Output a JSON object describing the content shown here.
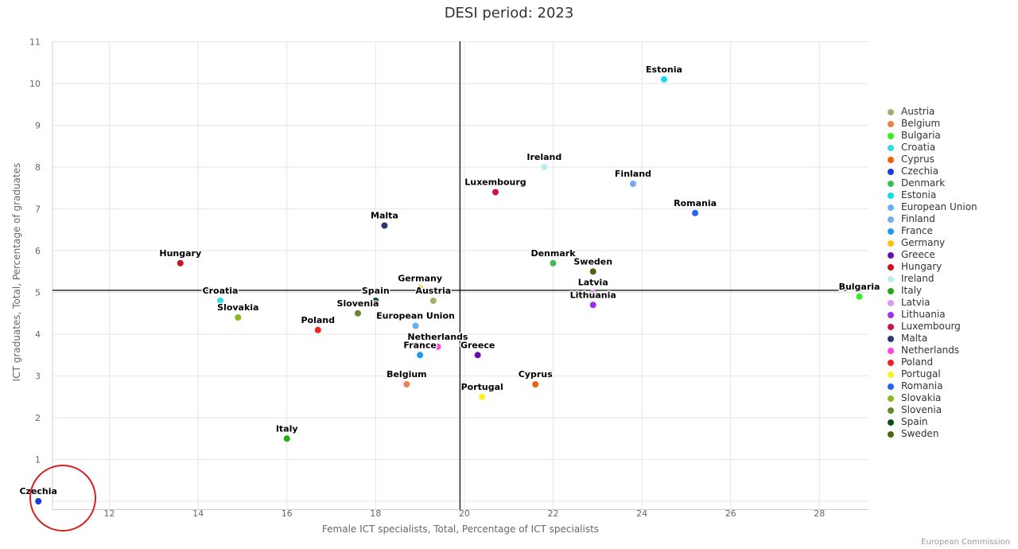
{
  "chart_data": {
    "type": "scatter",
    "title": "DESI period: 2023",
    "xlabel": "Female ICT specialists, Total, Percentage of ICT specialists",
    "ylabel": "ICT graduates, Total, Percentage of graduates",
    "xlim": [
      10.2,
      29.2
    ],
    "ylim": [
      -0.2,
      11
    ],
    "xticks": [
      12,
      14,
      16,
      18,
      20,
      22,
      24,
      26,
      28
    ],
    "yticks": [
      0,
      1,
      2,
      3,
      4,
      5,
      6,
      7,
      8,
      9,
      10,
      11
    ],
    "grid": true,
    "reference_lines": {
      "x": 19.9,
      "y": 5.05
    },
    "legend_position": "right",
    "highlight": "Czechia",
    "points": [
      {
        "name": "Austria",
        "x": 19.3,
        "y": 4.8,
        "color": "#a6ad6b"
      },
      {
        "name": "Belgium",
        "x": 18.7,
        "y": 2.8,
        "color": "#f0804f"
      },
      {
        "name": "Bulgaria",
        "x": 28.9,
        "y": 4.9,
        "color": "#33ee22"
      },
      {
        "name": "Croatia",
        "x": 14.5,
        "y": 4.8,
        "color": "#33dddd"
      },
      {
        "name": "Cyprus",
        "x": 21.6,
        "y": 2.8,
        "color": "#f25f0c"
      },
      {
        "name": "Czechia",
        "x": 10.4,
        "y": 0.0,
        "color": "#1a3cdd"
      },
      {
        "name": "Denmark",
        "x": 22.0,
        "y": 5.7,
        "color": "#44bb55"
      },
      {
        "name": "Estonia",
        "x": 24.5,
        "y": 10.1,
        "color": "#11ddee"
      },
      {
        "name": "European Union",
        "x": 18.9,
        "y": 4.2,
        "color": "#66b0f0"
      },
      {
        "name": "Finland",
        "x": 23.8,
        "y": 7.6,
        "color": "#77aaee"
      },
      {
        "name": "France",
        "x": 19.0,
        "y": 3.5,
        "color": "#1e9aee"
      },
      {
        "name": "Germany",
        "x": 19.0,
        "y": 5.1,
        "color": "#ffc107"
      },
      {
        "name": "Greece",
        "x": 20.3,
        "y": 3.5,
        "color": "#6a0dad"
      },
      {
        "name": "Hungary",
        "x": 13.6,
        "y": 5.7,
        "color": "#cc1122"
      },
      {
        "name": "Ireland",
        "x": 21.8,
        "y": 8.0,
        "color": "#b8eef0"
      },
      {
        "name": "Italy",
        "x": 16.0,
        "y": 1.5,
        "color": "#22aa11"
      },
      {
        "name": "Latvia",
        "x": 22.9,
        "y": 5.0,
        "color": "#dd99ee"
      },
      {
        "name": "Lithuania",
        "x": 22.9,
        "y": 4.7,
        "color": "#9933ee"
      },
      {
        "name": "Luxembourg",
        "x": 20.7,
        "y": 7.4,
        "color": "#cc1155"
      },
      {
        "name": "Malta",
        "x": 18.2,
        "y": 6.6,
        "color": "#2a3870"
      },
      {
        "name": "Netherlands",
        "x": 19.4,
        "y": 3.7,
        "color": "#ff44dd"
      },
      {
        "name": "Poland",
        "x": 16.7,
        "y": 4.1,
        "color": "#ee2222"
      },
      {
        "name": "Portugal",
        "x": 20.4,
        "y": 2.5,
        "color": "#ffee22"
      },
      {
        "name": "Romania",
        "x": 25.2,
        "y": 6.9,
        "color": "#2266ee"
      },
      {
        "name": "Slovakia",
        "x": 14.9,
        "y": 4.4,
        "color": "#88bb22"
      },
      {
        "name": "Slovenia",
        "x": 17.6,
        "y": 4.5,
        "color": "#668833"
      },
      {
        "name": "Spain",
        "x": 18.0,
        "y": 4.8,
        "color": "#0d4d22"
      },
      {
        "name": "Sweden",
        "x": 22.9,
        "y": 5.5,
        "color": "#4a6611"
      }
    ]
  },
  "credit": "European Commission"
}
